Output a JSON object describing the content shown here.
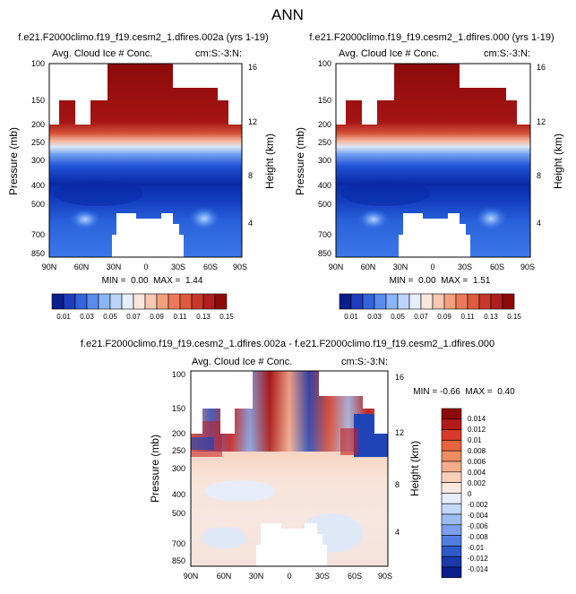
{
  "page_title": "ANN",
  "colorbar_top": [
    "0.01",
    "0.03",
    "0.05",
    "0.07",
    "0.09",
    "0.11",
    "0.13",
    "0.15"
  ],
  "colorbar_diff": [
    "0.014",
    "0.012",
    "0.01",
    "0.008",
    "0.006",
    "0.004",
    "0.002",
    "0",
    "-0.002",
    "-0.004",
    "-0.006",
    "-0.008",
    "-0.01",
    "-0.012",
    "-0.014"
  ],
  "chart_data": [
    {
      "type": "heatmap",
      "title": "f.e21.F2000climo.f19_f19.cesm2_1.dfires.002a (yrs 1-19)",
      "subtitle_left": "Avg. Cloud Ice # Conc.",
      "subtitle_right": "cm:S:-3:N:",
      "xlabel": "",
      "ylabel": "Pressure (mb)",
      "ylabel_right": "Height (km)",
      "x_ticks": [
        "90N",
        "60N",
        "30N",
        "0",
        "30S",
        "60S",
        "90S"
      ],
      "y_ticks": [
        "100",
        "150",
        "200",
        "250",
        "300",
        "400",
        "500",
        "700",
        "850"
      ],
      "y_right_ticks": [
        "16",
        "12",
        "8",
        "4"
      ],
      "stats": "MIN =  0.00  MAX =  1.44",
      "colorbar_labels": [
        "0.01",
        "0.03",
        "0.05",
        "0.07",
        "0.09",
        "0.11",
        "0.13",
        "0.15"
      ]
    },
    {
      "type": "heatmap",
      "title": "f.e21.F2000climo.f19_f19.cesm2_1.dfires.000 (yrs 1-19)",
      "subtitle_left": "Avg. Cloud Ice # Conc.",
      "subtitle_right": "cm:S:-3:N:",
      "xlabel": "",
      "ylabel": "Pressure (mb)",
      "ylabel_right": "Height (km)",
      "x_ticks": [
        "90N",
        "60N",
        "30N",
        "0",
        "30S",
        "60S",
        "90S"
      ],
      "y_ticks": [
        "100",
        "150",
        "200",
        "250",
        "300",
        "400",
        "500",
        "700",
        "850"
      ],
      "y_right_ticks": [
        "16",
        "12",
        "8",
        "4"
      ],
      "stats": "MIN =  0.00  MAX =  1.51",
      "colorbar_labels": [
        "0.01",
        "0.03",
        "0.05",
        "0.07",
        "0.09",
        "0.11",
        "0.13",
        "0.15"
      ]
    },
    {
      "type": "heatmap",
      "title": "f.e21.F2000climo.f19_f19.cesm2_1.dfires.002a - f.e21.F2000climo.f19_f19.cesm2_1.dfires.000",
      "subtitle_left": "Avg. Cloud Ice # Conc.",
      "subtitle_right": "cm:S:-3:N:",
      "xlabel": "",
      "ylabel": "Pressure (mb)",
      "ylabel_right": "Height (km)",
      "x_ticks": [
        "90N",
        "60N",
        "30N",
        "0",
        "30S",
        "60S",
        "90S"
      ],
      "y_ticks": [
        "100",
        "150",
        "200",
        "250",
        "300",
        "400",
        "500",
        "700",
        "850"
      ],
      "y_right_ticks": [
        "16",
        "12",
        "8",
        "4"
      ],
      "stats": "MIN = -0.66  MAX =  0.40",
      "colorbar_labels": [
        "0.014",
        "0.012",
        "0.01",
        "0.008",
        "0.006",
        "0.004",
        "0.002",
        "0",
        "-0.002",
        "-0.004",
        "-0.006",
        "-0.008",
        "-0.01",
        "-0.012",
        "-0.014"
      ]
    }
  ]
}
